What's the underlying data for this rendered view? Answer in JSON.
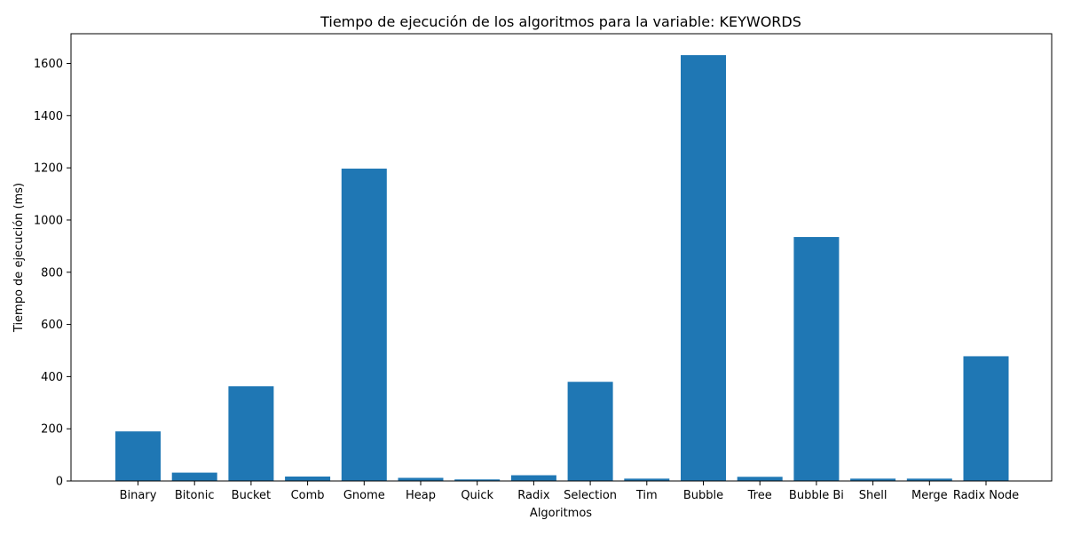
{
  "chart_data": {
    "type": "bar",
    "title": "Tiempo de ejecución de los algoritmos para la variable: KEYWORDS",
    "xlabel": "Algoritmos",
    "ylabel": "Tiempo de ejecución (ms)",
    "categories": [
      "Binary",
      "Bitonic",
      "Bucket",
      "Comb",
      "Gnome",
      "Heap",
      "Quick",
      "Radix",
      "Selection",
      "Tim",
      "Bubble",
      "Tree",
      "Bubble Bi",
      "Shell",
      "Merge",
      "Radix Node"
    ],
    "values": [
      190,
      32,
      363,
      17,
      1197,
      12,
      6,
      22,
      380,
      9,
      1632,
      16,
      935,
      9,
      9,
      478
    ],
    "ylim": [
      0,
      1714
    ],
    "yticks": [
      0,
      200,
      400,
      600,
      800,
      1000,
      1200,
      1400,
      1600
    ],
    "grid": false,
    "legend": "none",
    "bar_color": "#1f77b4"
  }
}
